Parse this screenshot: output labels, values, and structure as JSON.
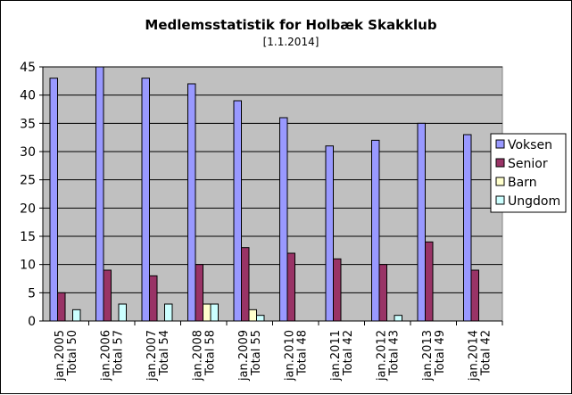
{
  "chart_data": {
    "type": "bar",
    "title": "Medlemsstatistik for Holbæk Skakklub",
    "subtitle": "[1.1.2014]",
    "categories": [
      [
        "jan.2005",
        "Total 50"
      ],
      [
        "jan.2006",
        "Total 57"
      ],
      [
        "jan.2007",
        "Total 54"
      ],
      [
        "jan.2008",
        "Total 58"
      ],
      [
        "jan.2009",
        "Total 55"
      ],
      [
        "jan.2010",
        "Total 48"
      ],
      [
        "jan.2011",
        "Total 42"
      ],
      [
        "jan.2012",
        "Total 43"
      ],
      [
        "jan.2013",
        "Total 49"
      ],
      [
        "jan.2014",
        "Total 42"
      ]
    ],
    "series": [
      {
        "name": "Voksen",
        "color": "#9999ff",
        "values": [
          43,
          45,
          43,
          42,
          39,
          36,
          31,
          32,
          35,
          33
        ]
      },
      {
        "name": "Senior",
        "color": "#993366",
        "values": [
          5,
          9,
          8,
          10,
          13,
          12,
          11,
          10,
          14,
          9
        ]
      },
      {
        "name": "Barn",
        "color": "#ffffcc",
        "values": [
          0,
          0,
          0,
          3,
          2,
          0,
          0,
          0,
          0,
          0
        ]
      },
      {
        "name": "Ungdom",
        "color": "#ccffff",
        "values": [
          2,
          3,
          3,
          3,
          1,
          0,
          0,
          1,
          0,
          0
        ]
      }
    ],
    "ylim": [
      0,
      45
    ],
    "yticks": [
      0,
      5,
      10,
      15,
      20,
      25,
      30,
      35,
      40,
      45
    ],
    "plot_background": "#c0c0c0",
    "grid": true,
    "legend_position": "right"
  }
}
